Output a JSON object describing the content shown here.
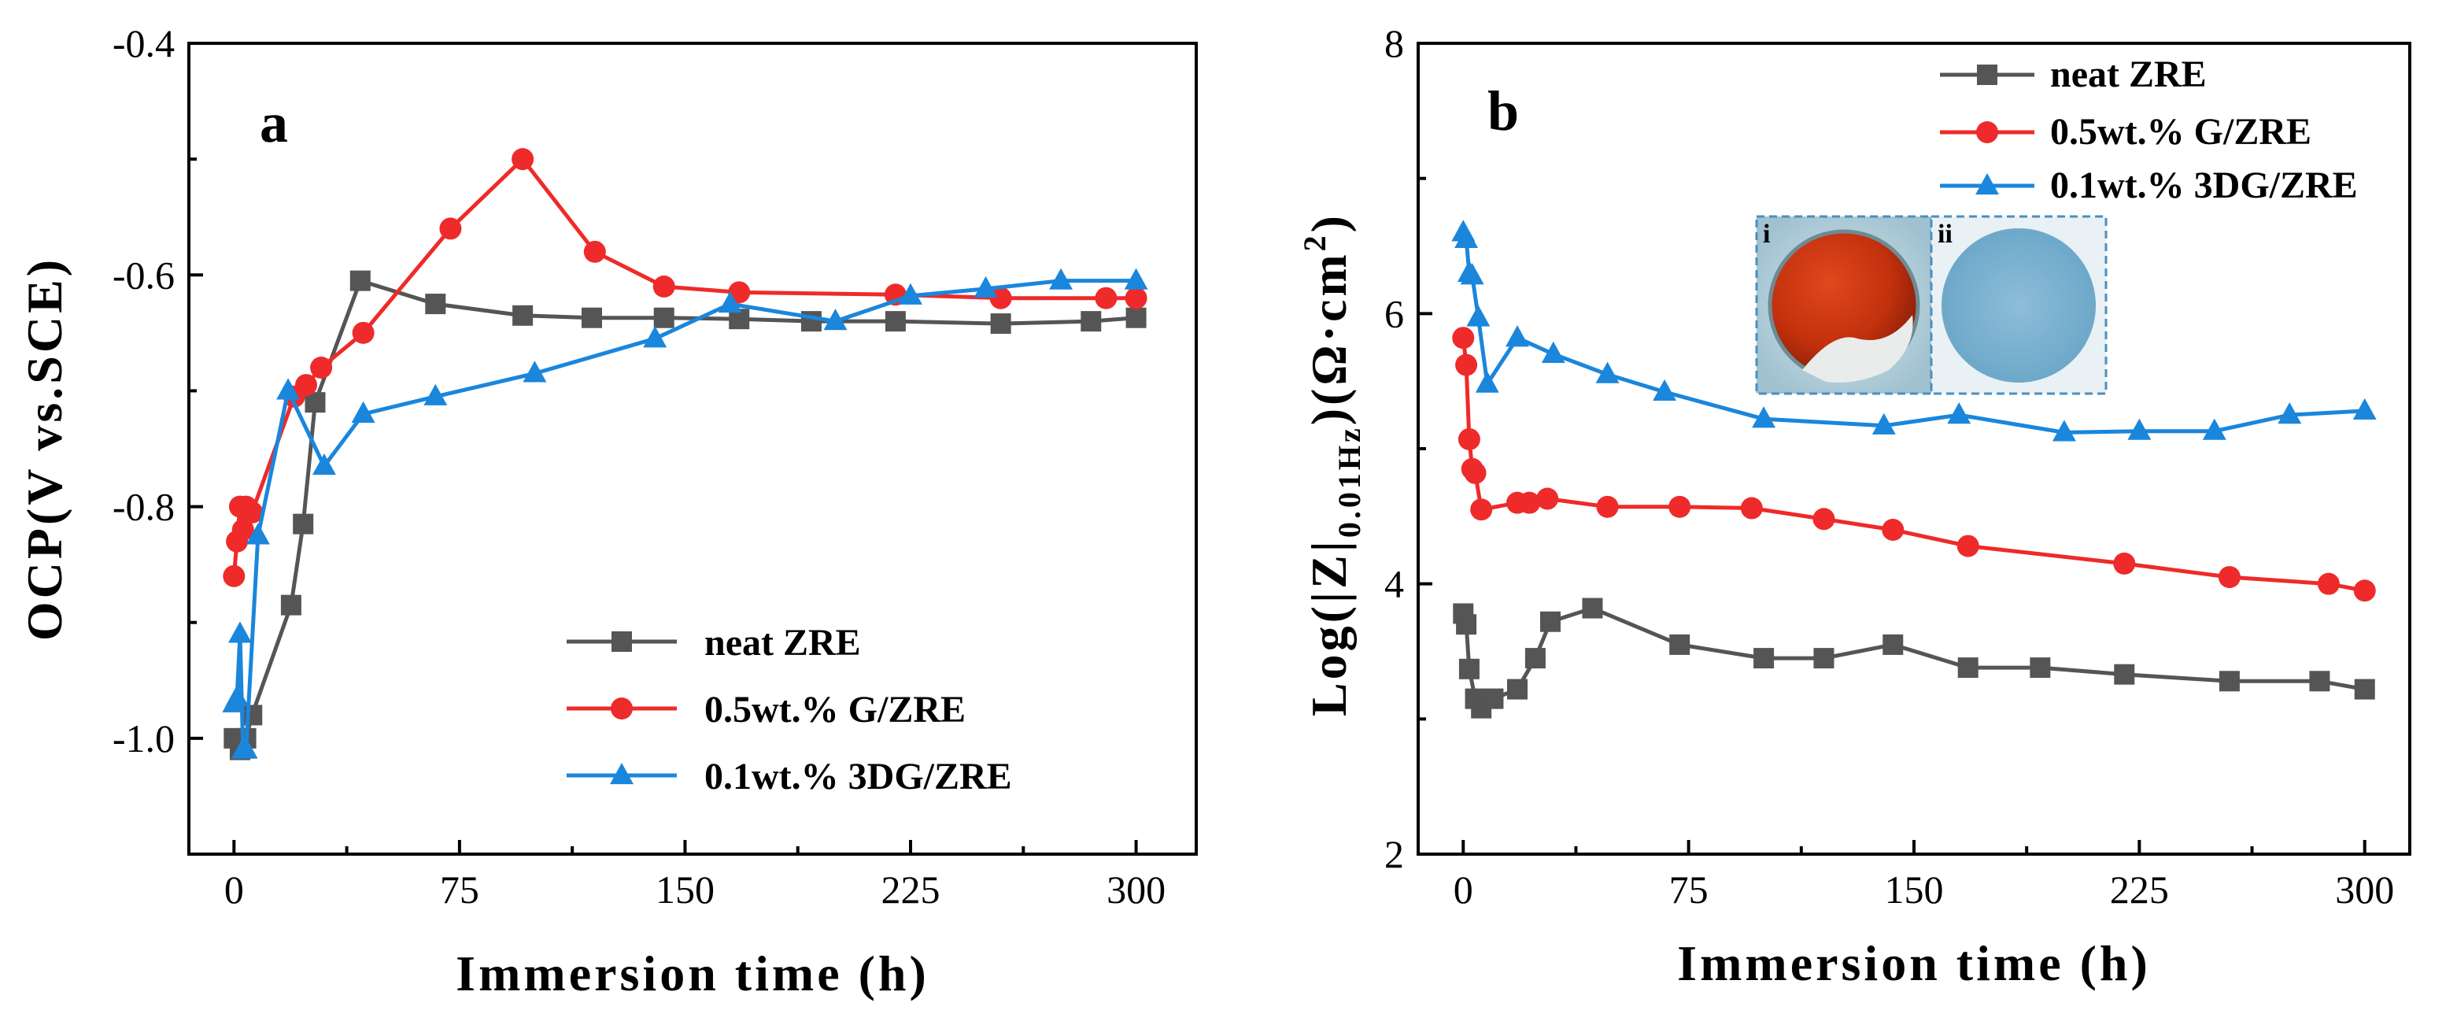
{
  "chart_data": [
    {
      "panel": "a",
      "type": "line",
      "xlabel": "Immersion time (h)",
      "ylabel": "OCP(V vs.SCE)",
      "xlim": [
        -15,
        320
      ],
      "ylim": [
        -1.1,
        -0.4
      ],
      "xticks": [
        0,
        75,
        150,
        225,
        300
      ],
      "yticks": [
        -1.0,
        -0.8,
        -0.6,
        -0.4
      ],
      "xtick_labels": [
        "0",
        "75",
        "150",
        "225",
        "300"
      ],
      "ytick_labels": [
        "-1.0",
        "-0.8",
        "-0.6",
        "-0.4"
      ],
      "legend_position": "bottom-right",
      "series": [
        {
          "name": "neat ZRE",
          "color": "#555555",
          "marker": "square",
          "x": [
            0,
            2,
            4,
            6,
            19,
            23,
            27,
            42,
            67,
            96,
            119,
            143,
            168,
            192,
            220,
            255,
            285,
            300
          ],
          "y": [
            -1.0,
            -1.01,
            -1.0,
            -0.98,
            -0.885,
            -0.815,
            -0.71,
            -0.605,
            -0.625,
            -0.635,
            -0.637,
            -0.637,
            -0.638,
            -0.64,
            -0.64,
            -0.642,
            -0.64,
            -0.637
          ]
        },
        {
          "name": "0.5wt.% G/ZRE",
          "color": "#ee2a2a",
          "marker": "circle",
          "x": [
            0,
            1,
            2,
            3,
            4,
            6,
            20,
            24,
            29,
            43,
            72,
            96,
            120,
            143,
            168,
            220,
            255,
            290,
            300
          ],
          "y": [
            -0.86,
            -0.83,
            -0.8,
            -0.82,
            -0.8,
            -0.805,
            -0.705,
            -0.695,
            -0.68,
            -0.65,
            -0.56,
            -0.5,
            -0.58,
            -0.61,
            -0.615,
            -0.617,
            -0.62,
            -0.62,
            -0.62
          ]
        },
        {
          "name": "0.1wt.% 3DG/ZRE",
          "color": "#1a86dc",
          "marker": "triangle",
          "x": [
            0,
            1,
            2,
            3,
            4,
            8,
            18,
            30,
            43,
            67,
            100,
            140,
            165,
            200,
            225,
            250,
            275,
            300
          ],
          "y": [
            -0.97,
            -0.965,
            -0.91,
            -1.01,
            -1.01,
            -0.825,
            -0.7,
            -0.765,
            -0.72,
            -0.705,
            -0.685,
            -0.655,
            -0.625,
            -0.64,
            -0.618,
            -0.612,
            -0.605,
            -0.605
          ]
        }
      ]
    },
    {
      "panel": "b",
      "type": "line",
      "xlabel": "Immersion time (h)",
      "ylabel": "Log(|Z|0.01Hz)(Ω·cm2)",
      "ylabel_parts": {
        "pre": "Log(|Z|",
        "sub": "0.01Hz",
        "mid": ")(Ω·cm",
        "sup": "2",
        "post": ")"
      },
      "xlim": [
        -15,
        315
      ],
      "ylim": [
        2,
        8
      ],
      "xticks": [
        0,
        75,
        150,
        225,
        300
      ],
      "yticks": [
        2,
        4,
        6,
        8
      ],
      "xtick_labels": [
        "0",
        "75",
        "150",
        "225",
        "300"
      ],
      "ytick_labels": [
        "2",
        "4",
        "6",
        "8"
      ],
      "legend_position": "top-center",
      "inset_labels": [
        "i",
        "ii"
      ],
      "series": [
        {
          "name": "neat ZRE",
          "color": "#555555",
          "marker": "square",
          "x": [
            0,
            1,
            2,
            4,
            6,
            10,
            18,
            24,
            29,
            43,
            72,
            100,
            120,
            143,
            168,
            192,
            220,
            255,
            285,
            300
          ],
          "y": [
            3.78,
            3.7,
            3.37,
            3.15,
            3.08,
            3.15,
            3.22,
            3.45,
            3.72,
            3.82,
            3.55,
            3.45,
            3.45,
            3.55,
            3.38,
            3.38,
            3.33,
            3.28,
            3.28,
            3.22
          ]
        },
        {
          "name": "0.5wt.% G/ZRE",
          "color": "#ee2a2a",
          "marker": "circle",
          "x": [
            0,
            1,
            2,
            3,
            4,
            6,
            18,
            22,
            28,
            48,
            72,
            96,
            120,
            143,
            168,
            220,
            255,
            288,
            300
          ],
          "y": [
            5.82,
            5.62,
            5.07,
            4.85,
            4.82,
            4.55,
            4.6,
            4.6,
            4.63,
            4.57,
            4.57,
            4.56,
            4.48,
            4.4,
            4.28,
            4.15,
            4.05,
            4.0,
            3.95
          ]
        },
        {
          "name": "0.1wt.% 3DG/ZRE",
          "color": "#1a86dc",
          "marker": "triangle",
          "x": [
            0,
            1,
            2,
            3,
            5,
            8,
            18,
            30,
            48,
            67,
            100,
            140,
            165,
            200,
            225,
            250,
            275,
            300
          ],
          "y": [
            6.6,
            6.55,
            6.3,
            6.28,
            5.97,
            5.48,
            5.82,
            5.7,
            5.55,
            5.42,
            5.22,
            5.17,
            5.25,
            5.12,
            5.13,
            5.13,
            5.25,
            5.28
          ]
        }
      ]
    }
  ]
}
